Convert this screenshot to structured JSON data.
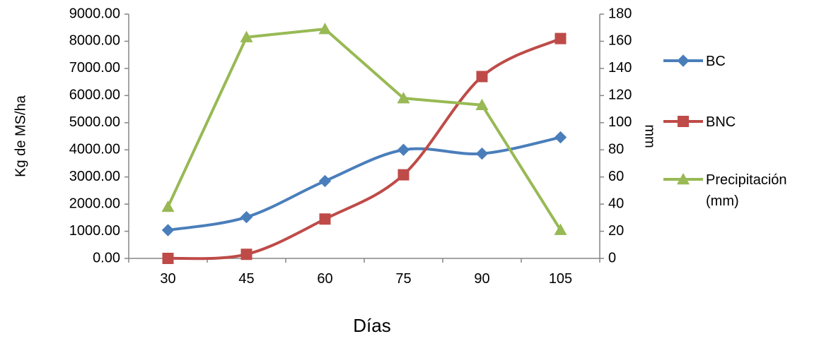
{
  "chart_data": {
    "type": "line",
    "categories": [
      "30",
      "45",
      "60",
      "75",
      "90",
      "105"
    ],
    "xlabel": "Días",
    "ylabel": "Kg de MS/ha",
    "y2label": "mm",
    "ylim": [
      0,
      9000
    ],
    "yticks": [
      "0.00",
      "1000.00",
      "2000.00",
      "3000.00",
      "4000.00",
      "5000.00",
      "6000.00",
      "7000.00",
      "8000.00",
      "9000.00"
    ],
    "y2lim": [
      0,
      180
    ],
    "y2ticks": [
      "0",
      "20",
      "40",
      "60",
      "80",
      "100",
      "120",
      "140",
      "160",
      "180"
    ],
    "grid": false,
    "legend_position": "right",
    "series": [
      {
        "name": "BC",
        "axis": "left",
        "marker": "diamond",
        "smooth": true,
        "color": "#4A7EBB",
        "values": [
          1040,
          1520,
          2850,
          4000,
          3860,
          4460
        ]
      },
      {
        "name": "BNC",
        "axis": "left",
        "marker": "square",
        "smooth": true,
        "color": "#BE4B48",
        "values": [
          0,
          150,
          1450,
          3080,
          6700,
          8100
        ]
      },
      {
        "name": "Precipitación (mm)",
        "legend_lines": [
          "Precipitación",
          "(mm)"
        ],
        "axis": "right",
        "marker": "triangle",
        "smooth": false,
        "color": "#98B954",
        "values": [
          38,
          163,
          169,
          118,
          113,
          21
        ]
      }
    ]
  }
}
